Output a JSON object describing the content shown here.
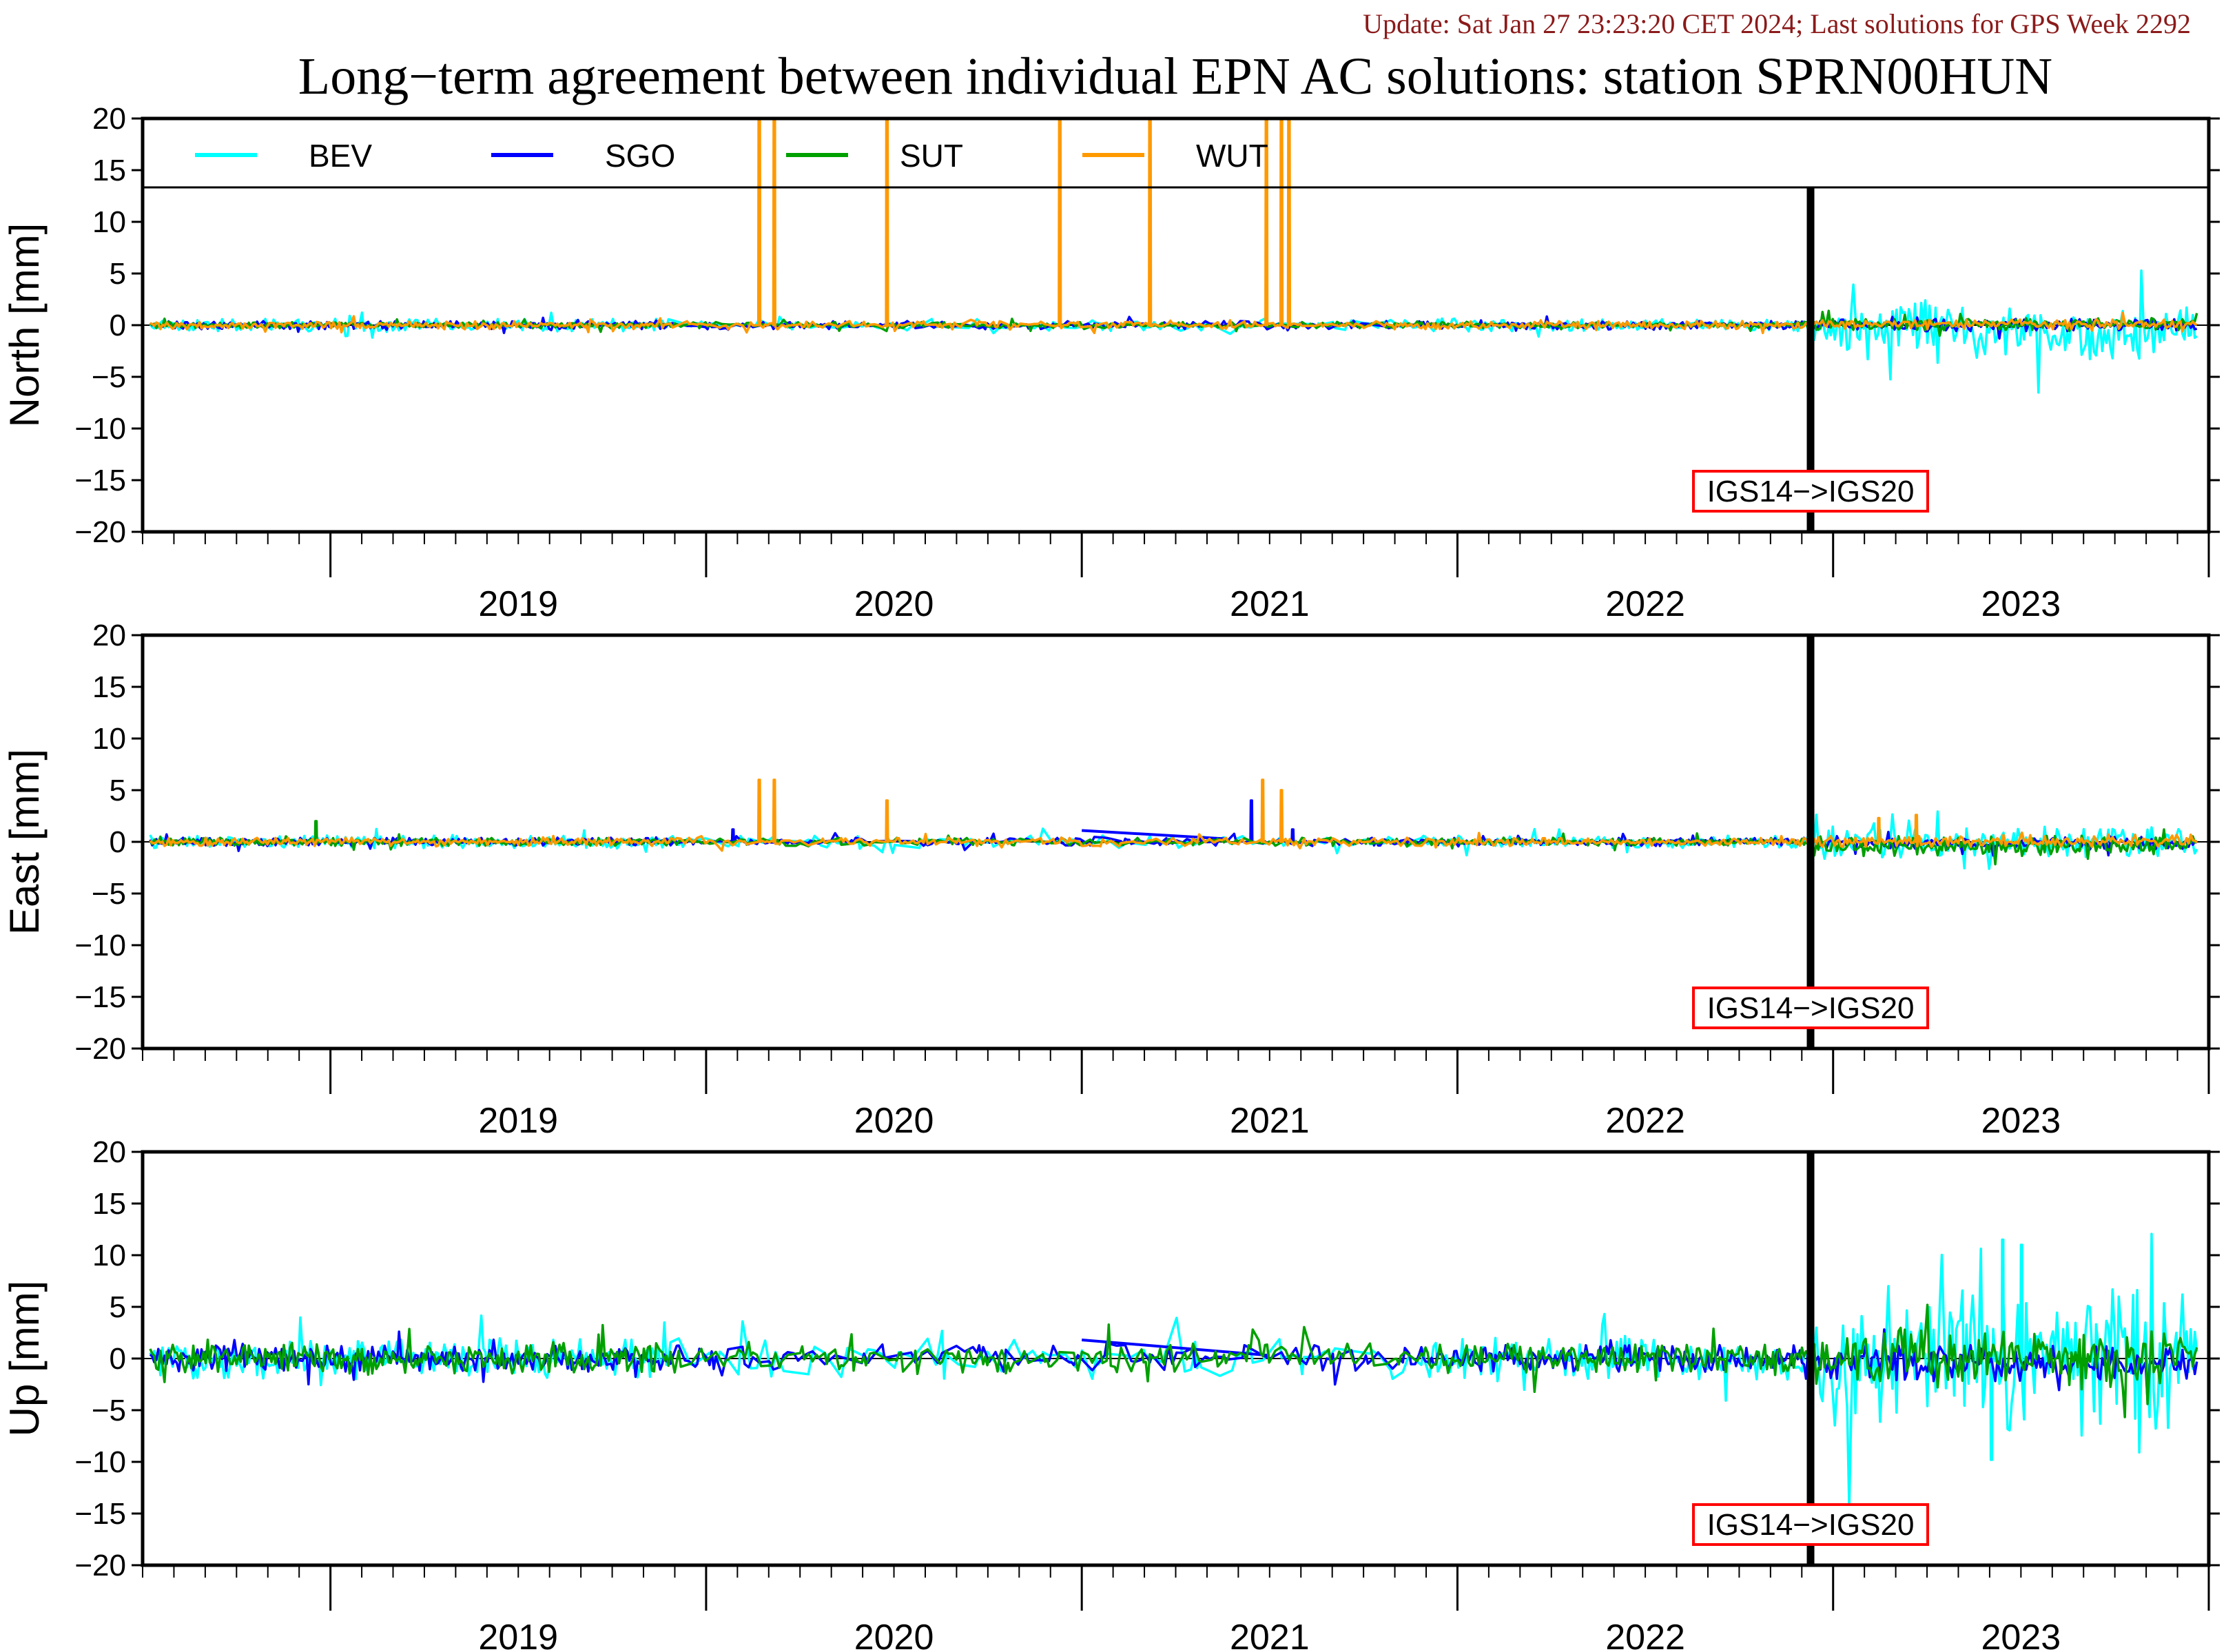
{
  "header": {
    "update_text": "Update: Sat Jan 27 23:23:20 CET 2024; Last solutions for GPS Week 2292",
    "update_color": "#8b1a1a",
    "title": "Long−term agreement between individual EPN AC solutions: station SPRN00HUN"
  },
  "colors": {
    "BEV": "#00ffff",
    "SGO": "#0000ff",
    "SUT": "#00a000",
    "WUT": "#ff9900",
    "frame": "#000000",
    "annotation_border": "#ff0000"
  },
  "legend": {
    "placement": "top-inside-first-panel",
    "entries": [
      {
        "name": "BEV",
        "color": "#00ffff"
      },
      {
        "name": "SGO",
        "color": "#0000ff"
      },
      {
        "name": "SUT",
        "color": "#00a000"
      },
      {
        "name": "WUT",
        "color": "#ff9900"
      }
    ]
  },
  "chart_data": [
    {
      "type": "line",
      "ylabel": "North [mm]",
      "ylim": [
        -20,
        20
      ],
      "yticks": [
        "20",
        "15",
        "10",
        "5",
        "0",
        "−5",
        "−10",
        "−15",
        "−20"
      ],
      "xticks": [
        "2019",
        "2020",
        "2021",
        "2022",
        "2023"
      ],
      "xlim": [
        2018.5,
        2024.0
      ],
      "annotation": {
        "text": "IGS14−>IGS20",
        "x": 2022.94
      },
      "series": [
        {
          "name": "BEV",
          "amp": 0.6,
          "rare": 0.35,
          "late_amp": 2.8,
          "late_bias": -0.6
        },
        {
          "name": "SGO",
          "amp": 0.4,
          "rare": 0.2,
          "late_amp": 0.6,
          "late_bias": 0.0
        },
        {
          "name": "SUT",
          "amp": 0.3,
          "rare": 0.1,
          "late_amp": 0.6,
          "late_bias": 0.1
        },
        {
          "name": "WUT",
          "amp": 0.4,
          "rare": 0.1,
          "late_amp": 0.5,
          "late_bias": 0.1,
          "spikes": [
            [
              2020.14,
              100
            ],
            [
              2020.18,
              100
            ],
            [
              2020.48,
              30
            ],
            [
              2020.94,
              100
            ],
            [
              2021.18,
              100
            ],
            [
              2021.49,
              100
            ],
            [
              2021.53,
              100
            ],
            [
              2021.55,
              100
            ]
          ]
        }
      ]
    },
    {
      "type": "line",
      "ylabel": "East [mm]",
      "ylim": [
        -20,
        20
      ],
      "yticks": [
        "20",
        "15",
        "10",
        "5",
        "0",
        "−5",
        "−10",
        "−15",
        "−20"
      ],
      "xticks": [
        "2019",
        "2020",
        "2021",
        "2022",
        "2023"
      ],
      "xlim": [
        2018.5,
        2024.0
      ],
      "annotation": {
        "text": "IGS14−>IGS20",
        "x": 2022.94
      },
      "series": [
        {
          "name": "BEV",
          "amp": 0.6,
          "rare": 0.4,
          "late_amp": 1.5,
          "late_bias": 0.0
        },
        {
          "name": "SGO",
          "amp": 0.4,
          "rare": 0.2,
          "late_amp": 0.6,
          "late_bias": -0.1,
          "spikes": [
            [
              2020.07,
              1.2
            ],
            [
              2021.45,
              4.0
            ],
            [
              2021.56,
              1.2
            ]
          ],
          "segment": [
            [
              2021.0,
              1.1
            ],
            [
              2021.38,
              0.3
            ]
          ]
        },
        {
          "name": "SUT",
          "amp": 0.4,
          "rare": 0.2,
          "late_amp": 1.0,
          "late_bias": -0.4,
          "spikes": [
            [
              2018.96,
              2.0
            ]
          ]
        },
        {
          "name": "WUT",
          "amp": 0.4,
          "rare": 0.1,
          "late_amp": 0.6,
          "late_bias": 0.1,
          "spikes": [
            [
              2020.14,
              6.0
            ],
            [
              2020.18,
              6.0
            ],
            [
              2020.48,
              4.0
            ],
            [
              2021.48,
              6.0
            ],
            [
              2021.53,
              5.0
            ],
            [
              2023.12,
              2.3
            ],
            [
              2023.22,
              2.6
            ]
          ]
        }
      ]
    },
    {
      "type": "line",
      "ylabel": "Up [mm]",
      "ylim": [
        -20,
        20
      ],
      "yticks": [
        "20",
        "15",
        "10",
        "5",
        "0",
        "−5",
        "−10",
        "−15",
        "−20"
      ],
      "xticks": [
        "2019",
        "2020",
        "2021",
        "2022",
        "2023"
      ],
      "xlim": [
        2018.5,
        2024.0
      ],
      "annotation": {
        "text": "IGS14−>IGS20",
        "x": 2022.94
      },
      "series": [
        {
          "name": "BEV",
          "amp": 2.0,
          "rare": 0.5,
          "late_amp": 7.0,
          "late_bias": 0.0,
          "spikes": [
            [
              2023.45,
              11.5
            ],
            [
              2023.5,
              11.0
            ],
            [
              2023.42,
              -9.8
            ]
          ]
        },
        {
          "name": "SGO",
          "amp": 1.3,
          "rare": 0.4,
          "late_amp": 1.8,
          "late_bias": -0.4,
          "segment": [
            [
              2021.0,
              1.8
            ],
            [
              2021.5,
              0.3
            ]
          ]
        },
        {
          "name": "SUT",
          "amp": 1.5,
          "rare": 0.2,
          "late_amp": 2.8,
          "late_bias": 0.2
        },
        {
          "name": "WUT",
          "amp": 0.0,
          "rare": 0.0,
          "late_amp": 0.0,
          "late_bias": 0.0
        }
      ]
    }
  ]
}
